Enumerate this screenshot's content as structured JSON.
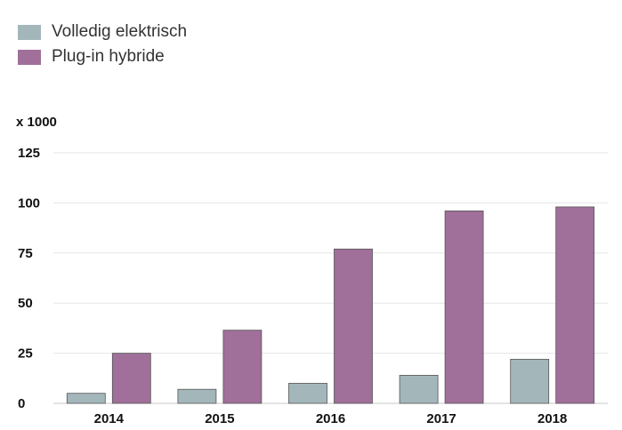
{
  "legend": {
    "items": [
      {
        "label": "Volledig elektrisch",
        "color": "#a3b7bb"
      },
      {
        "label": "Plug-in hybride",
        "color": "#a06f9a"
      }
    ]
  },
  "chart_data": {
    "type": "bar",
    "unit_label": "x 1000",
    "categories": [
      "2014",
      "2015",
      "2016",
      "2017",
      "2018"
    ],
    "series": [
      {
        "name": "Volledig elektrisch",
        "values": [
          5,
          7,
          10,
          14,
          22
        ],
        "color": "#a3b7bb"
      },
      {
        "name": "Plug-in hybride",
        "values": [
          25,
          36.5,
          77,
          96,
          98
        ],
        "color": "#a06f9a"
      }
    ],
    "yticks": [
      0,
      25,
      50,
      75,
      100,
      125
    ],
    "ylim": [
      0,
      125
    ],
    "grid": true,
    "legend_position": "top-left"
  }
}
